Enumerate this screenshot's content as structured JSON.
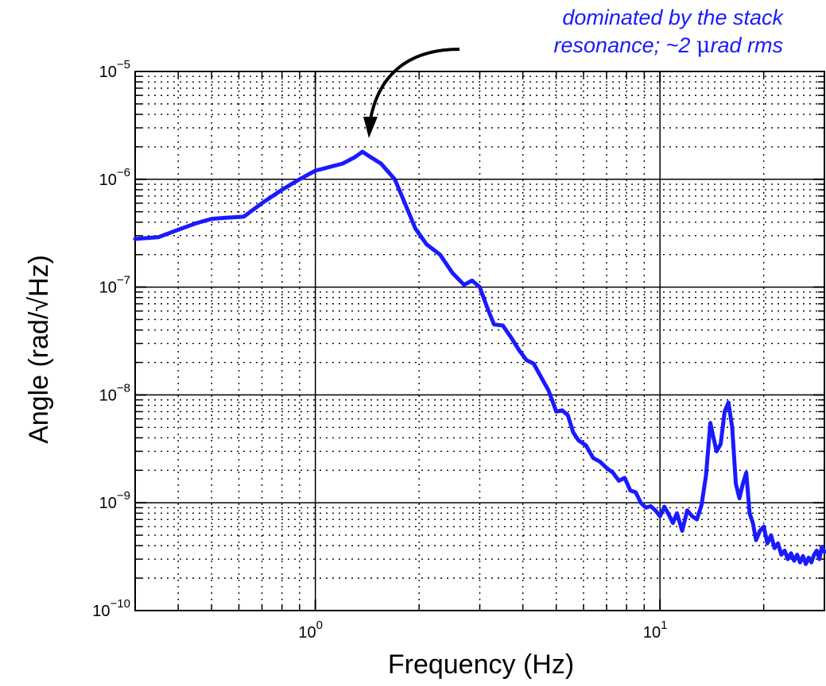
{
  "chart_data": {
    "type": "line",
    "title": "",
    "xlabel": "Frequency (Hz)",
    "ylabel": "Angle (rad/√Hz)",
    "xscale": "log",
    "yscale": "log",
    "xlim": [
      0.3,
      30
    ],
    "ylim": [
      1e-10,
      1e-05
    ],
    "grid": "major solid, minor dotted",
    "legend": "none",
    "x_ticks": [
      {
        "base": "10",
        "exp": "0",
        "value": 1
      },
      {
        "base": "10",
        "exp": "1",
        "value": 10
      }
    ],
    "y_ticks": [
      {
        "base": "10",
        "exp": "−10",
        "value": 1e-10
      },
      {
        "base": "10",
        "exp": "−9",
        "value": 1e-09
      },
      {
        "base": "10",
        "exp": "−8",
        "value": 1e-08
      },
      {
        "base": "10",
        "exp": "−7",
        "value": 1e-07
      },
      {
        "base": "10",
        "exp": "−6",
        "value": 1e-06
      },
      {
        "base": "10",
        "exp": "−5",
        "value": 1e-05
      }
    ],
    "series_color": "#1a1aff",
    "annotation": {
      "line1": "dominated by the stack",
      "line2_prefix": "resonance; ~2 ",
      "line2_mu": "μ",
      "line2_suffix": "rad rms",
      "color": "#1a1aff",
      "points_to": {
        "x": 1.37,
        "y": 1.8e-06
      }
    },
    "series": [
      {
        "x": [
          0.3,
          0.35,
          0.4,
          0.45,
          0.5,
          0.55,
          0.62,
          0.7,
          0.8,
          0.9,
          1.0,
          1.1,
          1.2,
          1.3,
          1.37,
          1.45,
          1.55,
          1.7,
          1.8,
          1.95,
          2.1,
          2.3,
          2.5,
          2.7,
          2.85,
          3.0,
          3.15,
          3.3,
          3.5,
          3.7,
          3.9,
          4.1,
          4.3,
          4.5,
          4.75,
          5.0,
          5.2,
          5.4,
          5.6,
          5.8,
          6.1,
          6.4,
          6.7,
          7.0,
          7.3,
          7.6,
          7.9,
          8.2,
          8.5,
          8.8,
          9.1,
          9.4,
          9.7,
          10.0,
          10.3,
          10.6,
          10.9,
          11.2,
          11.6,
          12.0,
          12.4,
          12.8,
          13.2,
          13.6,
          14.0,
          14.3,
          14.6,
          15.0,
          15.4,
          15.8,
          16.2,
          16.6,
          17.0,
          17.4,
          17.8,
          18.2,
          18.6,
          19.0,
          19.5,
          20.0,
          20.5,
          21.0,
          21.5,
          22.0,
          22.5,
          23.0,
          23.5,
          24.0,
          24.5,
          25.0,
          25.5,
          26.0,
          26.5,
          27.0,
          27.5,
          28.0,
          28.5,
          29.0,
          29.5,
          30.0
        ],
        "y": [
          2.8e-07,
          2.9e-07,
          3.4e-07,
          3.9e-07,
          4.3e-07,
          4.4e-07,
          4.5e-07,
          6e-07,
          8e-07,
          1e-06,
          1.2e-06,
          1.3e-06,
          1.4e-06,
          1.6e-06,
          1.8e-06,
          1.6e-06,
          1.4e-06,
          1e-06,
          6.5e-07,
          3.5e-07,
          2.5e-07,
          2e-07,
          1.35e-07,
          1.05e-07,
          1.15e-07,
          1e-07,
          6.5e-08,
          4.5e-08,
          4.4e-08,
          3.4e-08,
          2.6e-08,
          2.1e-08,
          1.95e-08,
          1.5e-08,
          1.1e-08,
          7e-09,
          7.2e-09,
          6.5e-09,
          4.5e-09,
          3.8e-09,
          3.4e-09,
          2.6e-09,
          2.4e-09,
          2.1e-09,
          1.9e-09,
          1.6e-09,
          1.7e-09,
          1.3e-09,
          1.25e-09,
          1e-09,
          9e-10,
          9.3e-10,
          8.5e-10,
          7.5e-10,
          9.2e-10,
          7.8e-10,
          6.5e-10,
          8e-10,
          5.5e-10,
          8.5e-10,
          7.5e-10,
          7e-10,
          9.5e-10,
          1.8e-09,
          5.5e-09,
          4e-09,
          3e-09,
          3.5e-09,
          7e-09,
          8.5e-09,
          5e-09,
          1.5e-09,
          1.1e-09,
          1.5e-09,
          1.9e-09,
          8e-10,
          6.5e-10,
          4.5e-10,
          5.5e-10,
          6e-10,
          4.2e-10,
          5e-10,
          3.8e-10,
          4.2e-10,
          3.3e-10,
          3.6e-10,
          3e-10,
          3.4e-10,
          2.9e-10,
          3.3e-10,
          2.8e-10,
          3.2e-10,
          2.7e-10,
          3.1e-10,
          2.8e-10,
          3.3e-10,
          3.6e-10,
          3e-10,
          3.9e-10,
          3.5e-10
        ]
      }
    ]
  }
}
